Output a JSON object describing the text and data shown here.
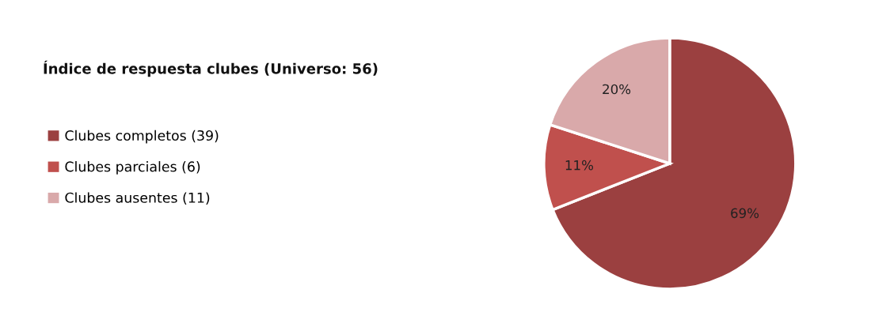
{
  "chart_data": {
    "type": "pie",
    "title": "Índice de respuesta clubes (Universo: 56)",
    "categories": [
      "Clubes completos (39)",
      "Clubes parciales (6)",
      "Clubes ausentes (11)"
    ],
    "values": [
      69,
      11,
      20
    ],
    "colors": [
      "#9b4040",
      "#c0504d",
      "#d9a9aa"
    ],
    "value_labels": [
      "69%",
      "11%",
      "20%"
    ],
    "legend": "left"
  }
}
